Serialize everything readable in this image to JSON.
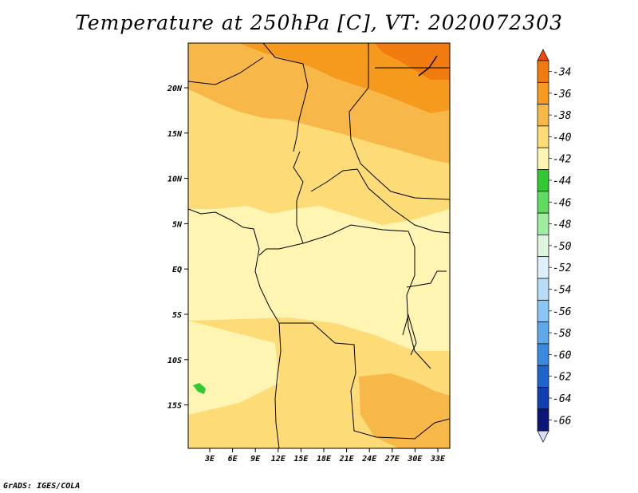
{
  "title": "Temperature at 250hPa [C], VT: 2020072303",
  "credit": "GrADS: IGES/COLA",
  "lat_labels": [
    "20N",
    "15N",
    "10N",
    "5N",
    "EQ",
    "5S",
    "10S",
    "15S"
  ],
  "lon_labels": [
    "3E",
    "6E",
    "9E",
    "12E",
    "15E",
    "18E",
    "21E",
    "24E",
    "27E",
    "30E",
    "33E"
  ],
  "colorbar": {
    "labels": [
      "-34",
      "-36",
      "-38",
      "-40",
      "-42",
      "-44",
      "-46",
      "-48",
      "-50",
      "-52",
      "-54",
      "-56",
      "-58",
      "-60",
      "-62",
      "-64",
      "-66"
    ],
    "colors": [
      "#f04a0a",
      "#f27b10",
      "#f59a1c",
      "#f8b849",
      "#fddc78",
      "#fef5b3",
      "#32c832",
      "#5fdc5f",
      "#9fed9f",
      "#def6de",
      "#def0fb",
      "#b6dcf6",
      "#8ac6f4",
      "#5fa8ec",
      "#3a8be0",
      "#1d64cc",
      "#0f3fb0",
      "#0a1678",
      "#d8dcf5"
    ]
  }
}
